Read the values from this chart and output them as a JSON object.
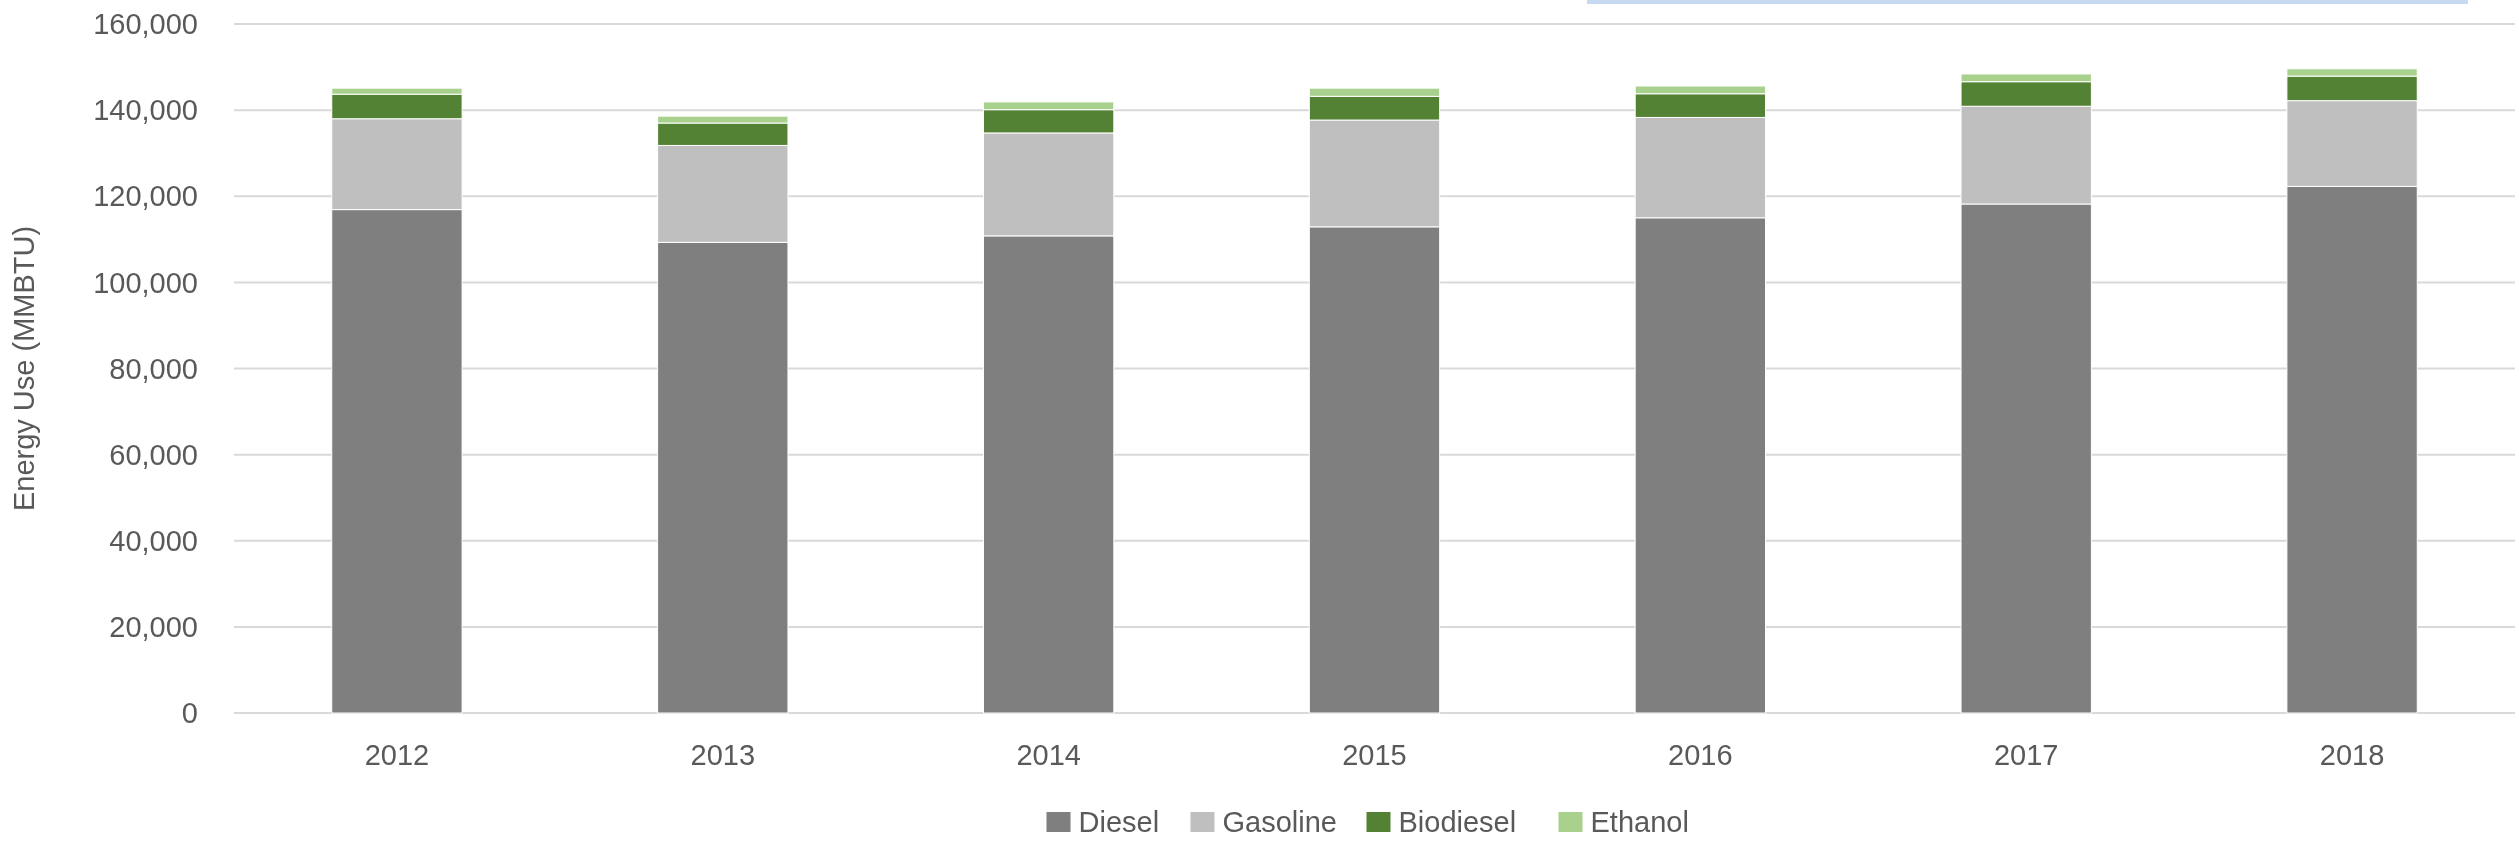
{
  "chart_data": {
    "type": "bar",
    "stacked": true,
    "ylabel": "Energy Use (MMBTU)",
    "categories": [
      "2012",
      "2013",
      "2014",
      "2015",
      "2016",
      "2017",
      "2018"
    ],
    "series": [
      {
        "name": "Diesel",
        "color": "#7f7f7f",
        "values": [
          116900,
          109300,
          110800,
          112900,
          115000,
          118200,
          122300
        ]
      },
      {
        "name": "Gasoline",
        "color": "#bfbfbf",
        "values": [
          21100,
          22500,
          23900,
          24800,
          23300,
          22700,
          19900
        ]
      },
      {
        "name": "Biodiesel",
        "color": "#548235",
        "values": [
          5700,
          5200,
          5400,
          5500,
          5500,
          5700,
          5700
        ]
      },
      {
        "name": "Ethanol",
        "color": "#a9d18e",
        "values": [
          1400,
          1600,
          1800,
          1900,
          1800,
          1800,
          1700
        ]
      }
    ],
    "ylim": [
      0,
      160000
    ],
    "yticks": [
      {
        "value": 0,
        "label": "0"
      },
      {
        "value": 20000,
        "label": "20,000"
      },
      {
        "value": 40000,
        "label": "40,000"
      },
      {
        "value": 60000,
        "label": "60,000"
      },
      {
        "value": 80000,
        "label": "80,000"
      },
      {
        "value": 100000,
        "label": "100,000"
      },
      {
        "value": 120000,
        "label": "120,000"
      },
      {
        "value": 140000,
        "label": "140,000"
      },
      {
        "value": 160000,
        "label": "160,000"
      }
    ],
    "grid": "y",
    "legend": "bottom"
  }
}
